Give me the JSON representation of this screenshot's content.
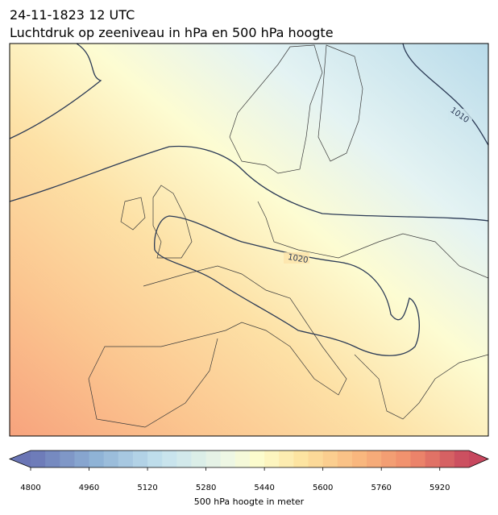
{
  "header": {
    "date": "24-11-1823 12 UTC",
    "title": "Luchtdruk op zeeniveau in hPa en 500 hPa hoogte"
  },
  "map": {
    "contour_labels": [
      1010,
      1020
    ]
  },
  "colorbar": {
    "label": "500 hPa hoogte in meter",
    "range": [
      4800,
      6000
    ],
    "ticks": [
      4800,
      4960,
      5120,
      5280,
      5440,
      5600,
      5760,
      5920
    ]
  }
}
